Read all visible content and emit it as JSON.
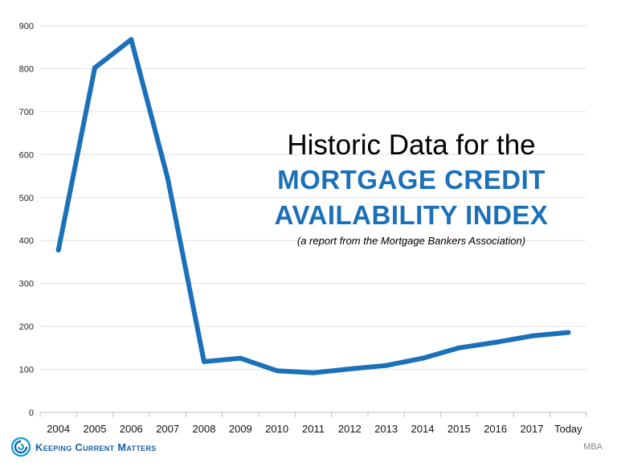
{
  "colors": {
    "line": "#1a70b9",
    "title_accent": "#1a70b9",
    "brand": "#1a5fa6"
  },
  "title": {
    "line1": "Historic Data for the",
    "line2": "MORTGAGE CREDIT",
    "line3": "AVAILABILITY INDEX",
    "subtitle": "(a report from the Mortgage Bankers Association)"
  },
  "brand": {
    "name": "Keeping Current Matters",
    "logo_icon": "kcm-swirl-icon"
  },
  "source": "MBA",
  "chart_data": {
    "type": "line",
    "title": "Historic Data for the MORTGAGE CREDIT AVAILABILITY INDEX",
    "subtitle": "(a report from the Mortgage Bankers Association)",
    "categories": [
      "2004",
      "2005",
      "2006",
      "2007",
      "2008",
      "2009",
      "2010",
      "2011",
      "2012",
      "2013",
      "2014",
      "2015",
      "2016",
      "2017",
      "Today"
    ],
    "values": [
      378,
      802,
      868,
      545,
      118,
      126,
      97,
      92,
      101,
      109,
      126,
      150,
      163,
      178,
      186
    ],
    "ylim": [
      0,
      900
    ],
    "yticks": [
      0,
      100,
      200,
      300,
      400,
      500,
      600,
      700,
      800,
      900
    ],
    "xlabel": "",
    "ylabel": "",
    "grid": true,
    "legend": "none"
  }
}
